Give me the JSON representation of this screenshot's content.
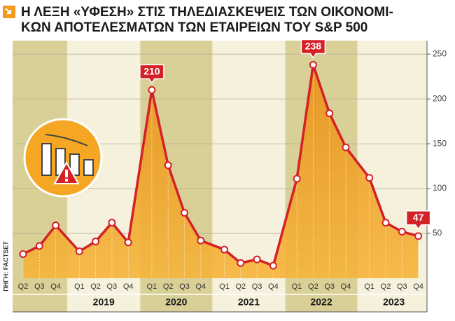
{
  "chart_data": {
    "type": "area-line",
    "title_lines": [
      "Η ΛΕΞΗ «ΥΦΕΣΗ» ΣΤΙΣ ΤΗΛΕΔΙΑΣΚΕΨΕΙΣ ΤΩΝ ΟΙΚΟΝΟΜΙ-",
      "ΚΩΝ ΑΠΟΤΕΛΕΣΜΑΤΩΝ ΤΩΝ ΕΤΑΙΡΕΙΩΝ ΤΟΥ S&P 500"
    ],
    "source": "ΠΗΓΗ: FACTSET",
    "categories": [
      "Q2",
      "Q3",
      "Q4",
      "Q1",
      "Q2",
      "Q3",
      "Q4",
      "Q1",
      "Q2",
      "Q3",
      "Q4",
      "Q1",
      "Q2",
      "Q3",
      "Q4",
      "Q1",
      "Q2",
      "Q3",
      "Q4",
      "Q1",
      "Q2",
      "Q3",
      "Q4"
    ],
    "x_groups": [
      {
        "label": null,
        "count": 3,
        "shaded": true
      },
      {
        "label": "2019",
        "count": 4,
        "shaded": false
      },
      {
        "label": "2020",
        "count": 4,
        "shaded": true
      },
      {
        "label": "2021",
        "count": 4,
        "shaded": false
      },
      {
        "label": "2022",
        "count": 4,
        "shaded": true
      },
      {
        "label": "2023",
        "count": 4,
        "shaded": false
      }
    ],
    "values": [
      27,
      36,
      59,
      30,
      41,
      62,
      40,
      210,
      126,
      73,
      42,
      32,
      17,
      21,
      14,
      111,
      238,
      184,
      146,
      112,
      62,
      52,
      47
    ],
    "labeled": [
      7,
      16,
      22
    ],
    "color": "#d42027",
    "ylim": [
      0,
      265
    ],
    "yticks": [
      50,
      100,
      150,
      200,
      250
    ],
    "grid": true
  }
}
